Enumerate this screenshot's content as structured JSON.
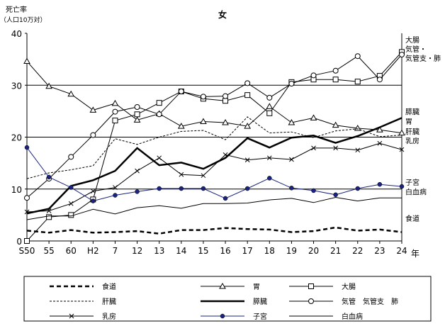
{
  "chart_data": {
    "type": "line",
    "title": "女",
    "ylabel": "死亡率",
    "ylabel_unit": "（人口10万対）",
    "xlabel": "年",
    "ylim": [
      0,
      40
    ],
    "yticks": [
      "0",
      "10",
      "20",
      "30",
      "40"
    ],
    "grid": "horizontal at 10, 20, 30",
    "categories": [
      "S50",
      "55",
      "60",
      "H2",
      "7",
      "12",
      "13",
      "14",
      "15",
      "16",
      "17",
      "18",
      "19",
      "20",
      "21",
      "22",
      "23",
      "24"
    ],
    "series": [
      {
        "name": "食道",
        "style": "dashed-bold",
        "values": [
          2.0,
          1.6,
          2.1,
          1.6,
          1.7,
          1.9,
          1.4,
          2.1,
          2.1,
          2.5,
          2.3,
          2.2,
          1.7,
          1.9,
          2.6,
          2.0,
          2.2,
          1.7
        ]
      },
      {
        "name": "胃",
        "style": "triangle",
        "values": [
          34.6,
          29.8,
          28.3,
          25.2,
          26.5,
          23.3,
          24.5,
          22.1,
          23.0,
          22.8,
          22.1,
          25.9,
          22.8,
          23.7,
          22.3,
          21.7,
          21.4,
          20.8
        ]
      },
      {
        "name": "大腸",
        "style": "square",
        "values": [
          0.0,
          4.6,
          5.0,
          8.0,
          23.2,
          24.4,
          26.6,
          28.8,
          27.4,
          27.0,
          28.1,
          24.6,
          30.6,
          31.1,
          31.1,
          30.7,
          31.8,
          36.4
        ]
      },
      {
        "name": "肝臓",
        "style": "dotted",
        "values": [
          12.0,
          13.1,
          13.7,
          14.5,
          19.7,
          18.6,
          20.0,
          21.1,
          21.3,
          19.5,
          23.9,
          20.8,
          21.0,
          19.9,
          21.2,
          21.6,
          20.1,
          20.4
        ]
      },
      {
        "name": "膵臓",
        "style": "bold",
        "values": [
          5.3,
          6.2,
          10.6,
          11.7,
          13.5,
          17.9,
          14.6,
          15.1,
          13.9,
          16.0,
          19.8,
          18.0,
          19.9,
          20.3,
          18.9,
          20.2,
          21.9,
          23.7
        ]
      },
      {
        "name": "気管、気管支、肺",
        "style": "circle",
        "values": [
          8.3,
          12.0,
          16.2,
          20.4,
          24.9,
          25.8,
          24.4,
          28.8,
          27.8,
          27.9,
          30.4,
          27.6,
          30.3,
          31.9,
          32.8,
          35.6,
          31.1,
          35.9
        ]
      },
      {
        "name": "乳房",
        "style": "cross",
        "values": [
          5.6,
          5.8,
          7.2,
          9.6,
          10.3,
          13.5,
          16.0,
          12.8,
          12.6,
          16.6,
          15.6,
          16.0,
          15.7,
          17.9,
          17.9,
          17.5,
          18.8,
          17.6
        ]
      },
      {
        "name": "子宮",
        "style": "dot",
        "values": [
          18.0,
          12.3,
          10.3,
          7.7,
          8.8,
          9.5,
          10.1,
          10.1,
          10.1,
          8.2,
          10.1,
          12.1,
          10.2,
          9.7,
          8.9,
          10.1,
          10.9,
          10.5
        ]
      },
      {
        "name": "白血病",
        "style": "solid-thin",
        "values": [
          4.1,
          4.8,
          4.8,
          6.1,
          5.2,
          6.4,
          6.8,
          6.3,
          7.2,
          7.2,
          7.3,
          7.9,
          8.2,
          7.4,
          8.4,
          7.7,
          8.3,
          8.3
        ]
      }
    ],
    "right_labels": [
      {
        "text": "大腸",
        "y": 38.8
      },
      {
        "text": "気管・",
        "y": 37.0
      },
      {
        "text": "気管支・肺",
        "y": 35.2
      },
      {
        "text": "膵臓",
        "y": 24.9
      },
      {
        "text": "胃",
        "y": 23.1
      },
      {
        "text": "肝臓",
        "y": 21.1
      },
      {
        "text": "乳房",
        "y": 19.3
      },
      {
        "text": "子宮",
        "y": 11.3
      },
      {
        "text": "白血病",
        "y": 9.5
      },
      {
        "text": "食道",
        "y": 4.4
      }
    ],
    "legend": [
      {
        "label": "食道",
        "style": "dashed-bold"
      },
      {
        "label": "胃",
        "style": "triangle"
      },
      {
        "label": "大腸",
        "style": "square"
      },
      {
        "label": "肝臓",
        "style": "dotted"
      },
      {
        "label": "膵臓",
        "style": "bold"
      },
      {
        "label": "気管　気管支　肺",
        "style": "circle"
      },
      {
        "label": "乳房",
        "style": "cross"
      },
      {
        "label": "子宮",
        "style": "dot"
      },
      {
        "label": "白血病",
        "style": "solid-thin"
      }
    ]
  }
}
